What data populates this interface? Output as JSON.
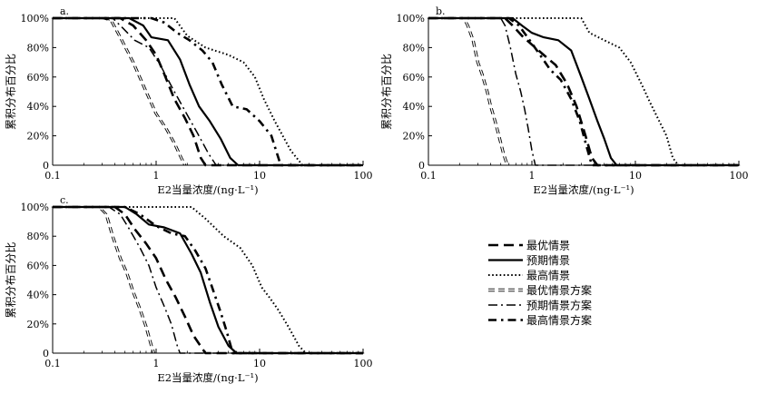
{
  "chart_data": [
    {
      "type": "line",
      "panel_label": "a.",
      "xscale": "log",
      "xlim": [
        0.1,
        100
      ],
      "ylim": [
        0,
        100
      ],
      "xlabel": "E2当量浓度/(ng·L⁻¹)",
      "ylabel": "累积分布百分比",
      "xtick_labels": [
        "0.1",
        "1",
        "10",
        "100"
      ],
      "ytick_labels": [
        "0",
        "20%",
        "40%",
        "60%",
        "80%",
        "100%"
      ],
      "series": [
        {
          "name": "最优情景",
          "x": [
            0.45,
            0.6,
            0.8,
            1.0,
            1.2,
            1.5,
            1.9,
            2.3,
            2.7,
            3.0
          ],
          "y": [
            100,
            95,
            85,
            75,
            62,
            45,
            32,
            20,
            5,
            0
          ]
        },
        {
          "name": "预期情景",
          "x": [
            0.55,
            0.75,
            0.9,
            1.3,
            1.7,
            2.1,
            2.6,
            3.3,
            4.2,
            5.2,
            6.2
          ],
          "y": [
            100,
            95,
            87,
            85,
            72,
            55,
            40,
            30,
            18,
            5,
            0
          ]
        },
        {
          "name": "最高情景",
          "x": [
            1.1,
            1.5,
            2.0,
            3.0,
            5.0,
            7.0,
            9.0,
            11.0,
            14.0,
            20.0,
            26.0
          ],
          "y": [
            100,
            100,
            88,
            80,
            75,
            70,
            60,
            45,
            30,
            10,
            0
          ]
        },
        {
          "name": "最优情景方案",
          "x": [
            0.3,
            0.37,
            0.45,
            0.6,
            0.8,
            1.0,
            1.25,
            1.5,
            1.75,
            1.9
          ],
          "y": [
            100,
            98,
            87,
            70,
            50,
            35,
            25,
            15,
            5,
            0
          ]
        },
        {
          "name": "预期情景方案",
          "x": [
            0.38,
            0.48,
            0.62,
            0.85,
            1.1,
            1.45,
            1.9,
            2.5,
            3.2,
            3.8
          ],
          "y": [
            100,
            93,
            85,
            80,
            68,
            52,
            37,
            22,
            8,
            0
          ]
        },
        {
          "name": "最高情景方案",
          "x": [
            0.9,
            1.2,
            1.6,
            2.1,
            2.8,
            3.5,
            4.3,
            5.5,
            7.5,
            10.0,
            13.0,
            16.0
          ],
          "y": [
            100,
            97,
            90,
            85,
            78,
            70,
            55,
            40,
            38,
            30,
            20,
            0
          ]
        }
      ]
    },
    {
      "type": "line",
      "panel_label": "b.",
      "xscale": "log",
      "xlim": [
        0.1,
        100
      ],
      "ylim": [
        0,
        100
      ],
      "xlabel": "E2当量浓度/(ng·L⁻¹)",
      "ylabel": "累积分布百分比",
      "xtick_labels": [
        "0.1",
        "1",
        "10",
        "100"
      ],
      "ytick_labels": [
        "0",
        "20%",
        "40%",
        "60%",
        "80%",
        "100%"
      ],
      "series": [
        {
          "name": "最优情景",
          "x": [
            0.55,
            0.65,
            0.8,
            1.0,
            1.3,
            1.7,
            2.2,
            2.7,
            3.3,
            3.8,
            4.3
          ],
          "y": [
            100,
            95,
            88,
            82,
            75,
            68,
            55,
            40,
            20,
            5,
            0
          ]
        },
        {
          "name": "预期情景",
          "x": [
            0.65,
            0.8,
            1.0,
            1.3,
            1.8,
            2.4,
            3.0,
            3.6,
            4.3,
            5.0,
            5.8,
            6.6
          ],
          "y": [
            100,
            95,
            90,
            87,
            85,
            78,
            60,
            45,
            30,
            18,
            5,
            0
          ]
        },
        {
          "name": "最高情景",
          "x": [
            2.5,
            3.0,
            3.6,
            5.0,
            7.0,
            9.0,
            11.5,
            14.0,
            17.0,
            20.0,
            23.0,
            26.0
          ],
          "y": [
            100,
            100,
            90,
            85,
            80,
            70,
            55,
            42,
            30,
            20,
            5,
            0
          ]
        },
        {
          "name": "最优情景方案",
          "x": [
            0.22,
            0.24,
            0.27,
            0.3,
            0.33,
            0.37,
            0.4,
            0.44,
            0.48,
            0.53,
            0.58
          ],
          "y": [
            100,
            95,
            85,
            70,
            62,
            50,
            40,
            30,
            20,
            8,
            0
          ]
        },
        {
          "name": "预期情景方案",
          "x": [
            0.5,
            0.55,
            0.62,
            0.7,
            0.78,
            0.85,
            0.92,
            1.0,
            1.08
          ],
          "y": [
            100,
            95,
            80,
            62,
            50,
            38,
            25,
            10,
            0
          ]
        },
        {
          "name": "最高情景方案",
          "x": [
            0.6,
            0.75,
            0.95,
            1.2,
            1.5,
            1.9,
            2.4,
            2.9,
            3.4,
            3.8
          ],
          "y": [
            100,
            95,
            85,
            75,
            65,
            58,
            45,
            30,
            12,
            0
          ]
        }
      ]
    },
    {
      "type": "line",
      "panel_label": "c.",
      "xscale": "log",
      "xlim": [
        0.1,
        100
      ],
      "ylim": [
        0,
        100
      ],
      "xlabel": "E2当量浓度/(ng·L⁻¹)",
      "ylabel": "累积分布百分比",
      "xtick_labels": [
        "0.1",
        "1",
        "10",
        "100"
      ],
      "ytick_labels": [
        "0",
        "20%",
        "40%",
        "60%",
        "80%",
        "100%"
      ],
      "series": [
        {
          "name": "最优情景",
          "x": [
            0.4,
            0.5,
            0.62,
            0.8,
            1.0,
            1.25,
            1.55,
            1.9,
            2.3,
            2.8,
            3.0
          ],
          "y": [
            100,
            95,
            85,
            75,
            65,
            50,
            38,
            25,
            12,
            3,
            0
          ]
        },
        {
          "name": "预期情景",
          "x": [
            0.5,
            0.65,
            0.85,
            1.2,
            1.7,
            2.2,
            2.7,
            3.3,
            4.0,
            5.0,
            6.0
          ],
          "y": [
            100,
            95,
            88,
            86,
            82,
            68,
            55,
            35,
            18,
            5,
            0
          ]
        },
        {
          "name": "最高情景",
          "x": [
            1.5,
            2.2,
            3.0,
            4.5,
            6.5,
            8.5,
            10.5,
            12.5,
            15.0,
            19.0,
            24.0,
            28.0
          ],
          "y": [
            100,
            100,
            92,
            80,
            72,
            60,
            45,
            38,
            30,
            18,
            5,
            0
          ]
        },
        {
          "name": "最优情景方案",
          "x": [
            0.28,
            0.33,
            0.38,
            0.45,
            0.52,
            0.6,
            0.7,
            0.8,
            0.9,
            0.95
          ],
          "y": [
            100,
            95,
            80,
            65,
            55,
            42,
            30,
            18,
            5,
            0
          ]
        },
        {
          "name": "预期情景方案",
          "x": [
            0.35,
            0.45,
            0.55,
            0.7,
            0.85,
            1.0,
            1.2,
            1.4,
            1.6,
            1.7
          ],
          "y": [
            100,
            95,
            85,
            72,
            60,
            45,
            32,
            20,
            5,
            0
          ]
        },
        {
          "name": "最高情景方案",
          "x": [
            0.5,
            0.7,
            1.0,
            1.4,
            1.9,
            2.4,
            3.0,
            3.6,
            4.2,
            4.8,
            5.5
          ],
          "y": [
            100,
            95,
            87,
            82,
            80,
            70,
            58,
            42,
            28,
            15,
            0
          ]
        }
      ]
    }
  ],
  "legend": {
    "items": [
      {
        "label": "最优情景",
        "style": "long-dash-thick"
      },
      {
        "label": "预期情景",
        "style": "solid-thick"
      },
      {
        "label": "最高情景",
        "style": "dotted"
      },
      {
        "label": "最优情景方案",
        "style": "double-thin-dash"
      },
      {
        "label": "预期情景方案",
        "style": "dash-dot-thin"
      },
      {
        "label": "最高情景方案",
        "style": "dash-dot-thick"
      }
    ]
  },
  "colors": {
    "line": "#000000",
    "background": "#ffffff"
  }
}
